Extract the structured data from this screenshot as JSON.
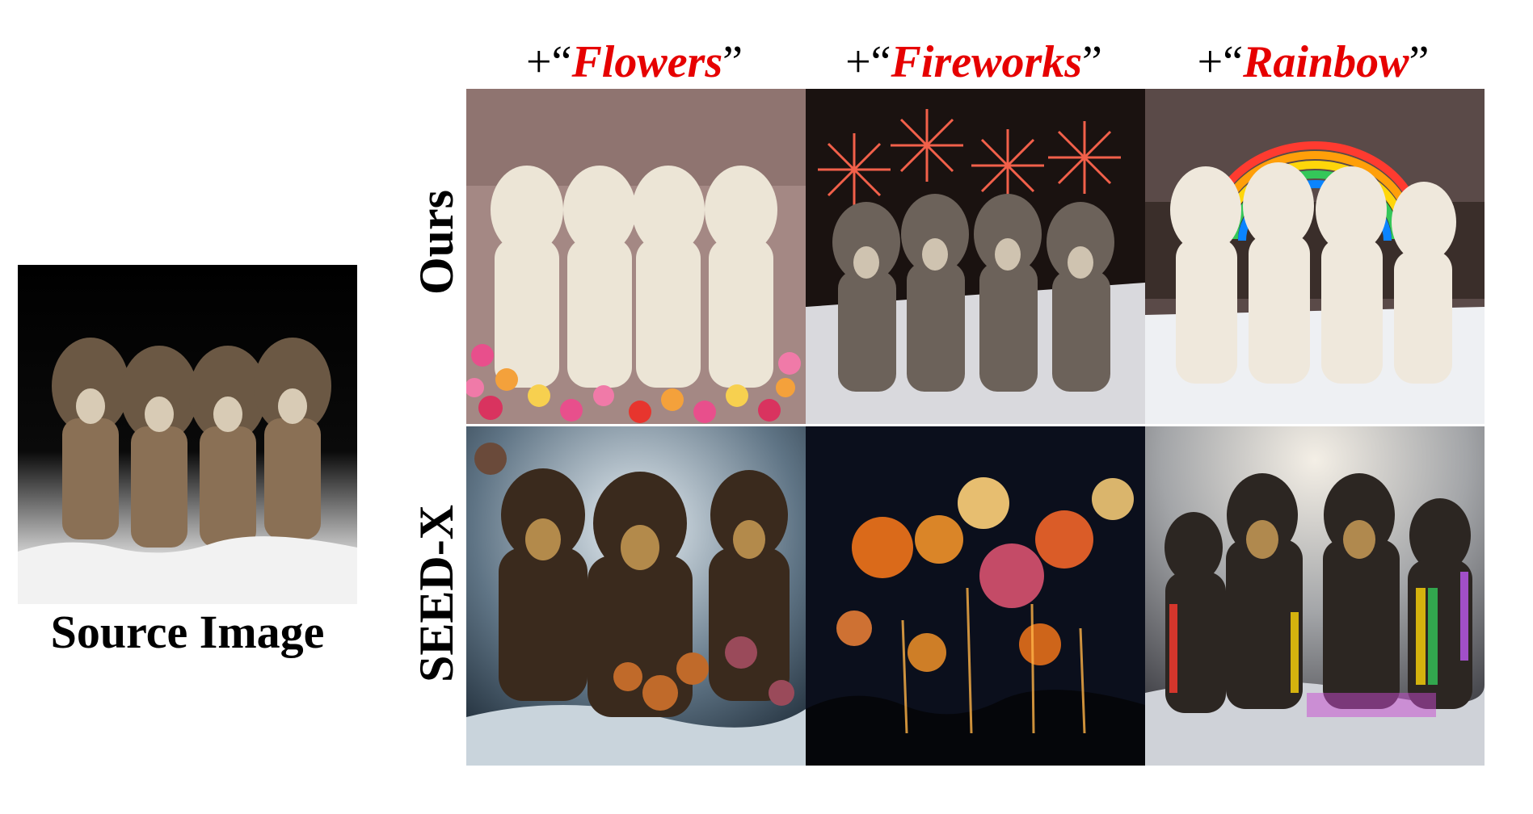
{
  "source": {
    "caption": "Source Image"
  },
  "columns": [
    {
      "prefix": "+“",
      "word": "Flowers",
      "suffix": "”"
    },
    {
      "prefix": "+“",
      "word": "Fireworks",
      "suffix": "”"
    },
    {
      "prefix": "+“",
      "word": "Rainbow",
      "suffix": "”"
    }
  ],
  "rows": [
    {
      "label": "Ours"
    },
    {
      "label": "SEED-X"
    }
  ],
  "colors": {
    "accent": "#e60000",
    "text": "#000000",
    "background": "#ffffff"
  }
}
